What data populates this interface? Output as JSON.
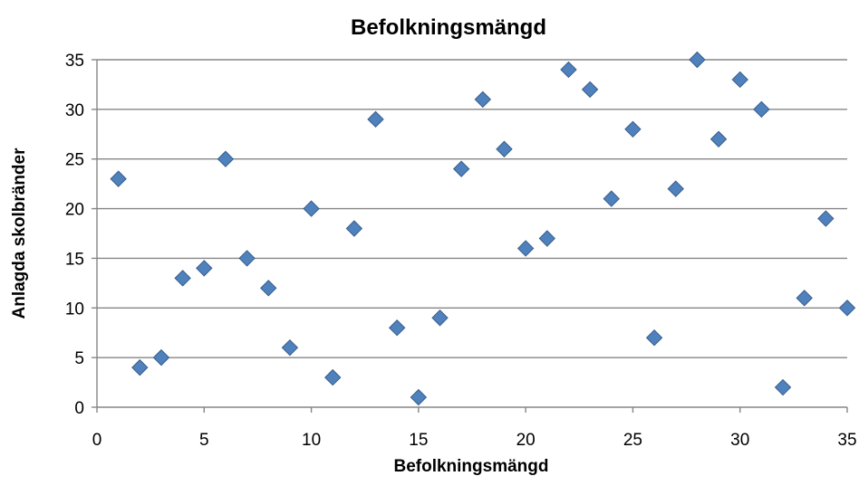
{
  "chart_data": {
    "type": "scatter",
    "title": "Befolkningsmängd",
    "xlabel": "Befolkningsmängd",
    "ylabel": "Anlagda skolbränder",
    "xlim": [
      0,
      35
    ],
    "ylim": [
      0,
      35
    ],
    "xticks": [
      0,
      5,
      10,
      15,
      20,
      25,
      30,
      35
    ],
    "yticks": [
      0,
      5,
      10,
      15,
      20,
      25,
      30,
      35
    ],
    "grid": "horizontal",
    "legend": "none",
    "marker": "diamond",
    "colors": {
      "marker_fill": "#4F81BD",
      "marker_stroke": "#385D8A",
      "gridline": "#868686"
    },
    "series": [
      {
        "x": [
          1,
          2,
          3,
          4,
          5,
          6,
          7,
          8,
          9,
          10,
          11,
          12,
          13,
          14,
          15,
          16,
          17,
          18,
          19,
          20,
          21,
          22,
          23,
          24,
          25,
          26,
          27,
          28,
          29,
          30,
          31,
          32,
          33,
          34,
          35
        ],
        "y": [
          23,
          4,
          5,
          13,
          14,
          25,
          15,
          12,
          6,
          20,
          3,
          18,
          29,
          8,
          1,
          9,
          24,
          31,
          26,
          16,
          17,
          34,
          32,
          21,
          28,
          7,
          22,
          35,
          27,
          33,
          30,
          2,
          11,
          19,
          10
        ]
      }
    ]
  }
}
